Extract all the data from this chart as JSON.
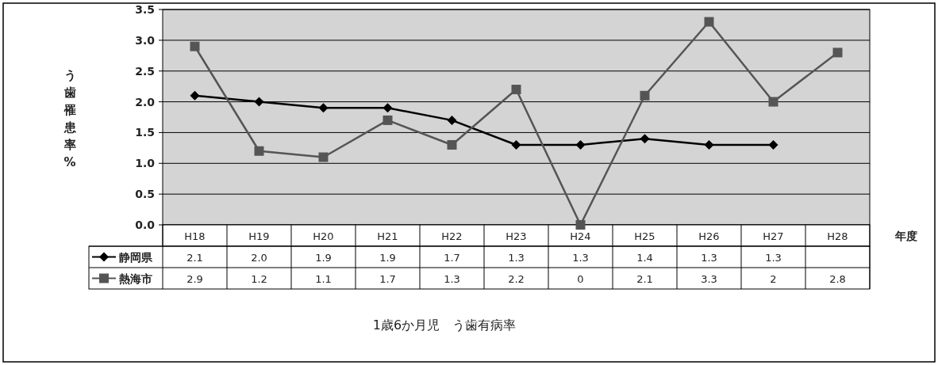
{
  "chart_data": {
    "type": "line",
    "title": "1歳6か月児　う歯有病率",
    "ylabel": "う歯罹患率%",
    "xlabel": "年度",
    "categories": [
      "H18",
      "H19",
      "H20",
      "H21",
      "H22",
      "H23",
      "H24",
      "H25",
      "H26",
      "H27",
      "H28"
    ],
    "ylim": [
      0,
      3.5
    ],
    "yticks": [
      {
        "value": 0,
        "label": "0.0"
      },
      {
        "value": 0.5,
        "label": "0.5"
      },
      {
        "value": 1,
        "label": "1.0"
      },
      {
        "value": 1.5,
        "label": "1.5"
      },
      {
        "value": 2,
        "label": "2.0"
      },
      {
        "value": 2.5,
        "label": "2.5"
      },
      {
        "value": 3,
        "label": "3.0"
      },
      {
        "value": 3.5,
        "label": "3.5"
      }
    ],
    "grid": "y",
    "legend": "bottom left",
    "series": [
      {
        "name": "静岡県",
        "color": "#000000",
        "marker": "diamond",
        "values": [
          2.1,
          2.0,
          1.9,
          1.9,
          1.7,
          1.3,
          1.3,
          1.4,
          1.3,
          1.3,
          null
        ],
        "value_labels": [
          "2.1",
          "2.0",
          "1.9",
          "1.9",
          "1.7",
          "1.3",
          "1.3",
          "1.4",
          "1.3",
          "1.3",
          null
        ]
      },
      {
        "name": "熱海市",
        "color": "#555555",
        "marker": "square",
        "values": [
          2.9,
          1.2,
          1.1,
          1.7,
          1.3,
          2.2,
          0,
          2.1,
          3.3,
          2,
          2.8
        ],
        "value_labels": [
          "2.9",
          "1.2",
          "1.1",
          "1.7",
          "1.3",
          "2.2",
          "0",
          "2.1",
          "3.3",
          "2",
          "2.8"
        ]
      }
    ]
  }
}
